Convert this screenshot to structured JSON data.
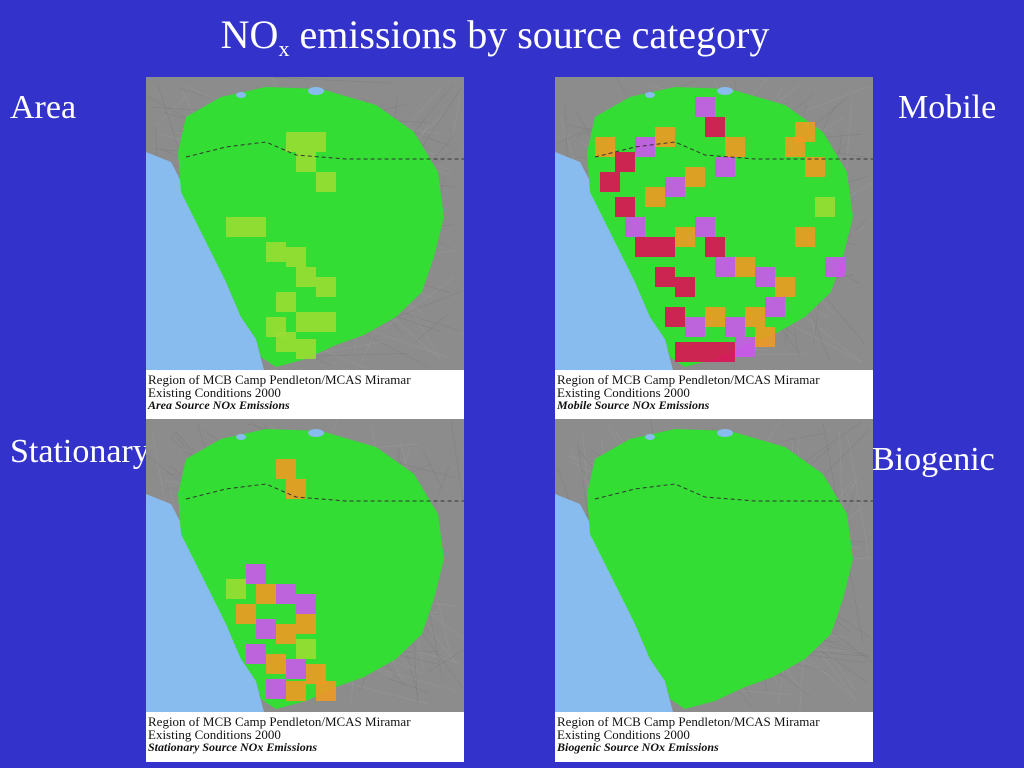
{
  "title": {
    "main": "NO",
    "sub": "x",
    "rest": " emissions by source category"
  },
  "labels": {
    "area": "Area",
    "mobile": "Mobile",
    "stationary": "Stationary",
    "biogenic": "Biogenic"
  },
  "panels": {
    "area": {
      "line1": "Region of MCB Camp Pendleton/MCAS Miramar",
      "line2": "Existing Conditions 2000",
      "line3": "Area Source NOx Emissions"
    },
    "mobile": {
      "line1": "Region of MCB Camp Pendleton/MCAS Miramar",
      "line2": "Existing Conditions 2000",
      "line3": "Mobile Source NOx Emissions"
    },
    "stationary": {
      "line1": "Region of MCB Camp Pendleton/MCAS Miramar",
      "line2": "Existing Conditions 2000",
      "line3": "Stationary Source NOx Emissions"
    },
    "biogenic": {
      "line1": "Region of MCB Camp Pendleton/MCAS Miramar",
      "line2": "Existing Conditions 2000",
      "line3": "Biogenic Source NOx Emissions"
    }
  },
  "colors": {
    "background": "#3333cc",
    "terrain": "#8c8c8c",
    "land": "#33dd33",
    "ocean": "#88bbee",
    "low": "#99dd33",
    "medium": "#ee9922",
    "high": "#cc55ee",
    "very_high": "#dd1155"
  }
}
